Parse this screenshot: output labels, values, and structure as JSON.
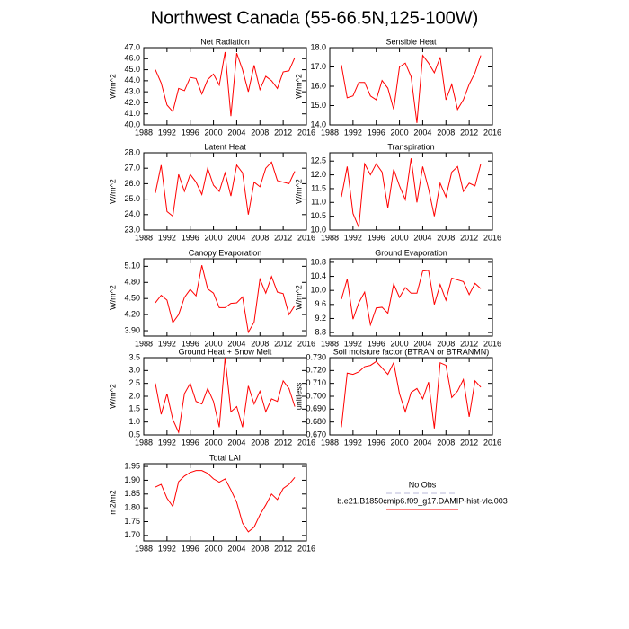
{
  "title": "Northwest Canada (55-66.5N,125-100W)",
  "legend": [
    {
      "label": "No Obs",
      "color": "#b8b8d8",
      "dashed": true
    },
    {
      "label": "b.e21.B1850cmip6.f09_g17.DAMIP-hist-vlc.003",
      "color": "#ff0000",
      "dashed": false
    }
  ],
  "chart_data": [
    {
      "type": "line",
      "title": "Net Radiation",
      "y_label": "W/m^2",
      "x": [
        1990,
        1991,
        1992,
        1993,
        1994,
        1995,
        1996,
        1997,
        1998,
        1999,
        2000,
        2001,
        2002,
        2003,
        2004,
        2005,
        2006,
        2007,
        2008,
        2009,
        2010,
        2011,
        2012,
        2013,
        2014
      ],
      "series": [
        {
          "color": "#ff0000",
          "values": [
            45.0,
            43.8,
            41.8,
            41.2,
            43.3,
            43.1,
            44.3,
            44.2,
            42.8,
            44.1,
            44.6,
            43.6,
            46.6,
            40.8,
            46.5,
            45.0,
            43.0,
            45.4,
            43.2,
            44.4,
            44.0,
            43.3,
            44.8,
            44.9,
            46.1
          ]
        }
      ],
      "xlim": [
        1988,
        2016
      ],
      "xticks": [
        1988,
        1992,
        1996,
        2000,
        2004,
        2008,
        2012,
        2016
      ],
      "ylim": [
        40,
        47
      ],
      "yticks": [
        {
          "value": 40,
          "label": "40.0"
        },
        {
          "value": 41,
          "label": "41.0"
        },
        {
          "value": 42,
          "label": "42.0"
        },
        {
          "value": 43,
          "label": "43.0"
        },
        {
          "value": 44,
          "label": "44.0"
        },
        {
          "value": 45,
          "label": "45.0"
        },
        {
          "value": 46,
          "label": "46.0"
        },
        {
          "value": 47,
          "label": "47.0"
        }
      ]
    },
    {
      "type": "line",
      "title": "Sensible Heat",
      "y_label": "W/m^2",
      "x": [
        1990,
        1991,
        1992,
        1993,
        1994,
        1995,
        1996,
        1997,
        1998,
        1999,
        2000,
        2001,
        2002,
        2003,
        2004,
        2005,
        2006,
        2007,
        2008,
        2009,
        2010,
        2011,
        2012,
        2013,
        2014
      ],
      "series": [
        {
          "color": "#ff0000",
          "values": [
            17.1,
            15.4,
            15.5,
            16.2,
            16.2,
            15.5,
            15.3,
            16.3,
            15.9,
            14.8,
            17.0,
            17.2,
            16.5,
            14.1,
            17.6,
            17.2,
            16.7,
            17.5,
            15.3,
            16.1,
            14.8,
            15.3,
            16.1,
            16.7,
            17.6
          ]
        }
      ],
      "xlim": [
        1988,
        2016
      ],
      "xticks": [
        1988,
        1992,
        1996,
        2000,
        2004,
        2008,
        2012,
        2016
      ],
      "ylim": [
        14,
        18
      ],
      "yticks": [
        {
          "value": 14,
          "label": "14.0"
        },
        {
          "value": 15,
          "label": "15.0"
        },
        {
          "value": 16,
          "label": "16.0"
        },
        {
          "value": 17,
          "label": "17.0"
        },
        {
          "value": 18,
          "label": "18.0"
        }
      ]
    },
    {
      "type": "line",
      "title": "Latent Heat",
      "y_label": "W/m^2",
      "x": [
        1990,
        1991,
        1992,
        1993,
        1994,
        1995,
        1996,
        1997,
        1998,
        1999,
        2000,
        2001,
        2002,
        2003,
        2004,
        2005,
        2006,
        2007,
        2008,
        2009,
        2010,
        2011,
        2012,
        2013,
        2014
      ],
      "series": [
        {
          "color": "#ff0000",
          "values": [
            25.4,
            27.2,
            24.2,
            23.9,
            26.6,
            25.5,
            26.6,
            26.1,
            25.3,
            27.0,
            25.9,
            25.5,
            26.7,
            25.2,
            27.2,
            26.7,
            24.0,
            26.1,
            25.8,
            27.0,
            27.4,
            26.2,
            26.1,
            26.0,
            26.8
          ]
        }
      ],
      "xlim": [
        1988,
        2016
      ],
      "xticks": [
        1988,
        1992,
        1996,
        2000,
        2004,
        2008,
        2012,
        2016
      ],
      "ylim": [
        23,
        28
      ],
      "yticks": [
        {
          "value": 23,
          "label": "23.0"
        },
        {
          "value": 24,
          "label": "24.0"
        },
        {
          "value": 25,
          "label": "25.0"
        },
        {
          "value": 26,
          "label": "26.0"
        },
        {
          "value": 27,
          "label": "27.0"
        },
        {
          "value": 28,
          "label": "28.0"
        }
      ]
    },
    {
      "type": "line",
      "title": "Transpiration",
      "y_label": "W/m^2",
      "x": [
        1990,
        1991,
        1992,
        1993,
        1994,
        1995,
        1996,
        1997,
        1998,
        1999,
        2000,
        2001,
        2002,
        2003,
        2004,
        2005,
        2006,
        2007,
        2008,
        2009,
        2010,
        2011,
        2012,
        2013,
        2014
      ],
      "series": [
        {
          "color": "#ff0000",
          "values": [
            11.2,
            12.3,
            10.6,
            10.1,
            12.4,
            12.0,
            12.4,
            12.1,
            10.8,
            12.2,
            11.6,
            11.1,
            12.6,
            11.0,
            12.3,
            11.5,
            10.5,
            11.7,
            11.2,
            12.1,
            12.3,
            11.4,
            11.7,
            11.6,
            12.4
          ]
        }
      ],
      "xlim": [
        1988,
        2016
      ],
      "xticks": [
        1988,
        1992,
        1996,
        2000,
        2004,
        2008,
        2012,
        2016
      ],
      "ylim": [
        10,
        12.8
      ],
      "yticks": [
        {
          "value": 10,
          "label": "10.0"
        },
        10.5,
        {
          "value": 11,
          "label": "11.0"
        },
        11.5,
        {
          "value": 12,
          "label": "12.0"
        },
        12.5
      ]
    },
    {
      "type": "line",
      "title": "Canopy Evaporation",
      "y_label": "W/m^2",
      "x": [
        1990,
        1991,
        1992,
        1993,
        1994,
        1995,
        1996,
        1997,
        1998,
        1999,
        2000,
        2001,
        2002,
        2003,
        2004,
        2005,
        2006,
        2007,
        2008,
        2009,
        2010,
        2011,
        2012,
        2013,
        2014
      ],
      "series": [
        {
          "color": "#ff0000",
          "values": [
            4.42,
            4.56,
            4.47,
            4.05,
            4.2,
            4.52,
            4.67,
            4.55,
            5.12,
            4.68,
            4.6,
            4.33,
            4.33,
            4.41,
            4.42,
            4.53,
            3.87,
            4.06,
            4.86,
            4.6,
            4.91,
            4.62,
            4.59,
            4.2,
            4.37
          ]
        }
      ],
      "xlim": [
        1988,
        2016
      ],
      "xticks": [
        1988,
        1992,
        1996,
        2000,
        2004,
        2008,
        2012,
        2016
      ],
      "ylim": [
        3.8,
        5.24
      ],
      "yticks": [
        {
          "value": 3.9,
          "label": "3.90"
        },
        {
          "value": 4.2,
          "label": "4.20"
        },
        {
          "value": 4.5,
          "label": "4.50"
        },
        {
          "value": 4.8,
          "label": "4.80"
        },
        {
          "value": 5.1,
          "label": "5.10"
        }
      ]
    },
    {
      "type": "line",
      "title": "Ground Evaporation",
      "y_label": "W/m^2",
      "x": [
        1990,
        1991,
        1992,
        1993,
        1994,
        1995,
        1996,
        1997,
        1998,
        1999,
        2000,
        2001,
        2002,
        2003,
        2004,
        2005,
        2006,
        2007,
        2008,
        2009,
        2010,
        2011,
        2012,
        2013,
        2014
      ],
      "series": [
        {
          "color": "#ff0000",
          "values": [
            9.75,
            10.32,
            9.18,
            9.65,
            9.95,
            9.02,
            9.5,
            9.52,
            9.35,
            10.18,
            9.8,
            10.08,
            9.92,
            9.92,
            10.55,
            10.57,
            9.6,
            10.17,
            9.72,
            10.35,
            10.3,
            10.25,
            9.88,
            10.2,
            10.05
          ]
        }
      ],
      "xlim": [
        1988,
        2016
      ],
      "xticks": [
        1988,
        1992,
        1996,
        2000,
        2004,
        2008,
        2012,
        2016
      ],
      "ylim": [
        8.7,
        10.9
      ],
      "yticks": [
        8.8,
        9.2,
        9.6,
        {
          "value": 10,
          "label": "10.0"
        },
        10.4,
        10.8
      ]
    },
    {
      "type": "line",
      "title": "Ground Heat + Snow Melt",
      "y_label": "W/m^2",
      "x": [
        1990,
        1991,
        1992,
        1993,
        1994,
        1995,
        1996,
        1997,
        1998,
        1999,
        2000,
        2001,
        2002,
        2003,
        2004,
        2005,
        2006,
        2007,
        2008,
        2009,
        2010,
        2011,
        2012,
        2013,
        2014
      ],
      "series": [
        {
          "color": "#ff0000",
          "values": [
            2.5,
            1.3,
            2.1,
            1.1,
            0.6,
            2.1,
            2.5,
            1.8,
            1.7,
            2.3,
            1.8,
            0.8,
            3.5,
            1.4,
            1.6,
            0.8,
            2.4,
            1.7,
            2.2,
            1.4,
            1.9,
            1.8,
            2.6,
            2.3,
            1.6
          ]
        }
      ],
      "xlim": [
        1988,
        2016
      ],
      "xticks": [
        1988,
        1992,
        1996,
        2000,
        2004,
        2008,
        2012,
        2016
      ],
      "ylim": [
        0.5,
        3.5
      ],
      "yticks": [
        0.5,
        {
          "value": 1,
          "label": "1.0"
        },
        1.5,
        {
          "value": 2,
          "label": "2.0"
        },
        2.5,
        {
          "value": 3,
          "label": "3.0"
        },
        3.5
      ]
    },
    {
      "type": "line",
      "title": "Soil moisture factor (BTRAN or BTRANMN)",
      "y_label": "unitless",
      "x": [
        1990,
        1991,
        1992,
        1993,
        1994,
        1995,
        1996,
        1997,
        1998,
        1999,
        2000,
        2001,
        2002,
        2003,
        2004,
        2005,
        2006,
        2007,
        2008,
        2009,
        2010,
        2011,
        2012,
        2013,
        2014
      ],
      "series": [
        {
          "color": "#ff0000",
          "values": [
            0.676,
            0.718,
            0.717,
            0.719,
            0.723,
            0.724,
            0.727,
            0.722,
            0.717,
            0.726,
            0.702,
            0.688,
            0.703,
            0.706,
            0.698,
            0.711,
            0.675,
            0.726,
            0.724,
            0.699,
            0.704,
            0.713,
            0.684,
            0.712,
            0.707
          ]
        }
      ],
      "xlim": [
        1988,
        2016
      ],
      "xticks": [
        1988,
        1992,
        1996,
        2000,
        2004,
        2008,
        2012,
        2016
      ],
      "ylim": [
        0.67,
        0.73
      ],
      "yticks": [
        {
          "value": 0.67,
          "label": "0.670"
        },
        {
          "value": 0.68,
          "label": "0.680"
        },
        {
          "value": 0.69,
          "label": "0.690"
        },
        {
          "value": 0.7,
          "label": "0.700"
        },
        {
          "value": 0.71,
          "label": "0.710"
        },
        {
          "value": 0.72,
          "label": "0.720"
        },
        {
          "value": 0.73,
          "label": "0.730"
        }
      ]
    },
    {
      "type": "line",
      "title": "Total LAI",
      "y_label": "m2/m2",
      "x": [
        1990,
        1991,
        1992,
        1993,
        1994,
        1995,
        1996,
        1997,
        1998,
        1999,
        2000,
        2001,
        2002,
        2003,
        2004,
        2005,
        2006,
        2007,
        2008,
        2009,
        2010,
        2011,
        2012,
        2013,
        2014
      ],
      "series": [
        {
          "color": "#ff0000",
          "values": [
            1.875,
            1.885,
            1.835,
            1.805,
            1.895,
            1.915,
            1.928,
            1.935,
            1.935,
            1.925,
            1.905,
            1.893,
            1.905,
            1.865,
            1.82,
            1.745,
            1.713,
            1.73,
            1.775,
            1.81,
            1.85,
            1.83,
            1.87,
            1.885,
            1.91
          ]
        }
      ],
      "xlim": [
        1988,
        2016
      ],
      "xticks": [
        1988,
        1992,
        1996,
        2000,
        2004,
        2008,
        2012,
        2016
      ],
      "ylim": [
        1.68,
        1.96
      ],
      "yticks": [
        {
          "value": 1.7,
          "label": "1.70"
        },
        1.75,
        {
          "value": 1.8,
          "label": "1.80"
        },
        1.85,
        {
          "value": 1.9,
          "label": "1.90"
        },
        1.95
      ]
    }
  ]
}
